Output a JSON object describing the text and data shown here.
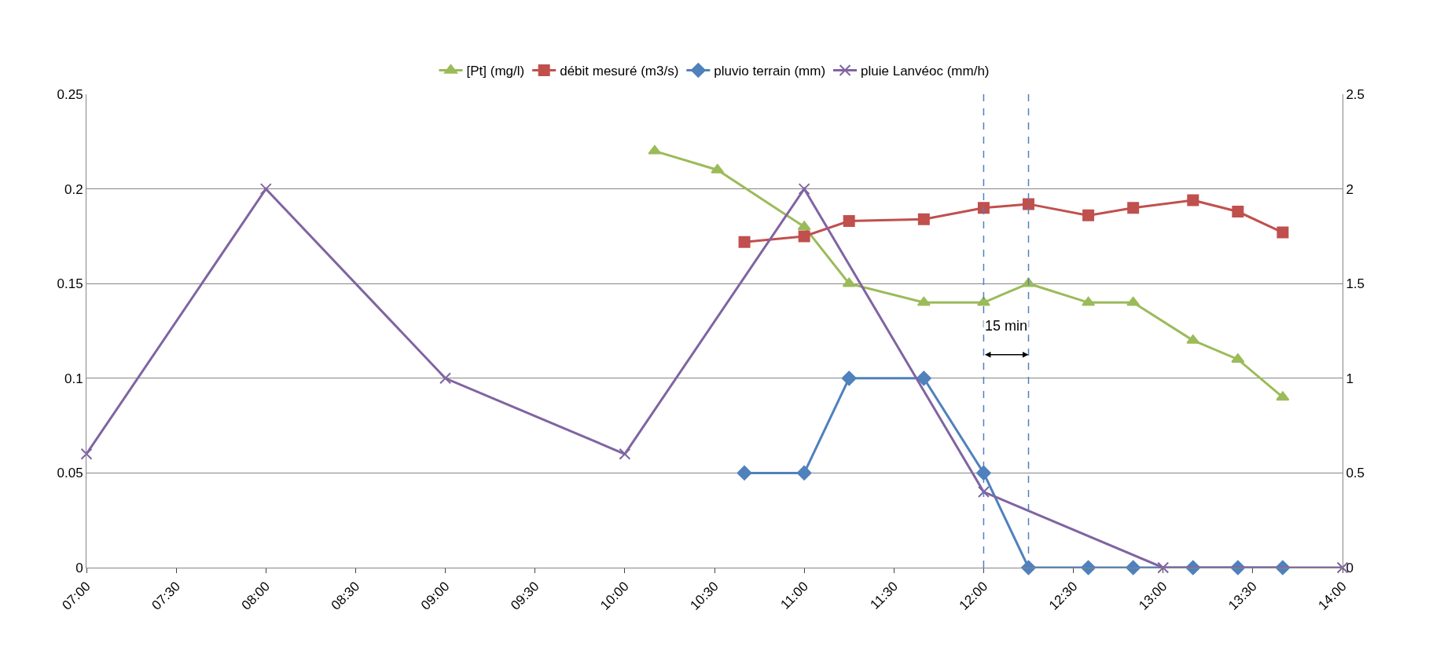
{
  "chart_data": {
    "type": "line",
    "xlim": [
      7,
      14
    ],
    "xticks": [
      {
        "value": 7,
        "label": "07:00"
      },
      {
        "value": 7.5,
        "label": "07:30"
      },
      {
        "value": 8,
        "label": "08:00"
      },
      {
        "value": 8.5,
        "label": "08:30"
      },
      {
        "value": 9,
        "label": "09:00"
      },
      {
        "value": 9.5,
        "label": "09:30"
      },
      {
        "value": 10,
        "label": "10:00"
      },
      {
        "value": 10.5,
        "label": "10:30"
      },
      {
        "value": 11,
        "label": "11:00"
      },
      {
        "value": 11.5,
        "label": "11:30"
      },
      {
        "value": 12,
        "label": "12:00"
      },
      {
        "value": 12.5,
        "label": "12:30"
      },
      {
        "value": 13,
        "label": "13:00"
      },
      {
        "value": 13.5,
        "label": "13:30"
      },
      {
        "value": 14,
        "label": "14:00"
      }
    ],
    "ylim": [
      0,
      0.25
    ],
    "yticks": [
      0,
      0.05,
      0.1,
      0.15,
      0.2,
      0.25
    ],
    "y2lim": [
      0,
      2.5
    ],
    "y2ticks": [
      0,
      0.5,
      1,
      1.5,
      2,
      2.5
    ],
    "grid": "y",
    "legend": "top",
    "series": [
      {
        "name": "[Pt] (mg/l)",
        "color": "#9bbb59",
        "marker": "triangle",
        "x": [
          10.1667,
          10.5167,
          11,
          11.25,
          11.6667,
          12,
          12.25,
          12.5833,
          12.8333,
          13.1667,
          13.4167,
          13.6667
        ],
        "values": [
          0.22,
          0.21,
          0.18,
          0.15,
          0.14,
          0.14,
          0.15,
          0.14,
          0.14,
          0.12,
          0.11,
          0.09
        ]
      },
      {
        "name": "débit mesuré (m3/s)",
        "color": "#c0504d",
        "marker": "square",
        "axis": "y2",
        "x": [
          10.6667,
          11,
          11.25,
          11.6667,
          12,
          12.25,
          12.5833,
          12.8333,
          13.1667,
          13.4167,
          13.6667
        ],
        "values": [
          1.72,
          1.75,
          1.83,
          1.84,
          1.9,
          1.92,
          1.86,
          1.9,
          1.94,
          1.88,
          1.77
        ]
      },
      {
        "name": "pluvio terrain (mm)",
        "color": "#4f81bd",
        "marker": "diamond",
        "axis": "y2",
        "x": [
          10.6667,
          11,
          11.25,
          11.6667,
          12,
          12.25,
          12.5833,
          12.8333,
          13.1667,
          13.4167,
          13.6667
        ],
        "values": [
          0.5,
          0.5,
          1,
          1,
          0.5,
          0,
          0,
          0,
          0,
          0,
          0
        ]
      },
      {
        "name": "pluie Lanvéoc (mm/h)",
        "color": "#8064a2",
        "marker": "cross",
        "axis": "y2",
        "x": [
          7,
          8,
          9,
          10,
          11,
          12,
          13,
          14
        ],
        "values": [
          0.6,
          2,
          1,
          0.6,
          2,
          0.4,
          0,
          0
        ]
      }
    ],
    "ref_lines": [
      {
        "axis": "x",
        "value": 12,
        "color": "#4f81bd",
        "line_style": "dashed"
      },
      {
        "axis": "x",
        "value": 12.25,
        "color": "#4f81bd",
        "line_style": "dashed"
      }
    ],
    "annotations": [
      "15 min"
    ]
  }
}
